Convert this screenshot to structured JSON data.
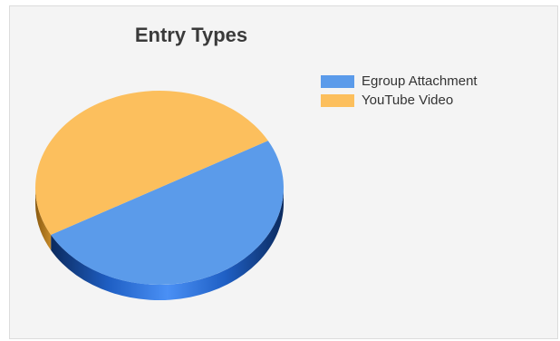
{
  "chart_data": {
    "type": "pie",
    "title": "Entry Types",
    "slices": [
      {
        "label": "Egroup Attachment",
        "value": 50,
        "color": "#5b9bea"
      },
      {
        "label": "YouTube Video",
        "value": 50,
        "color": "#fcbf5d"
      }
    ],
    "legend_placement": "top-right",
    "style": "3d"
  }
}
